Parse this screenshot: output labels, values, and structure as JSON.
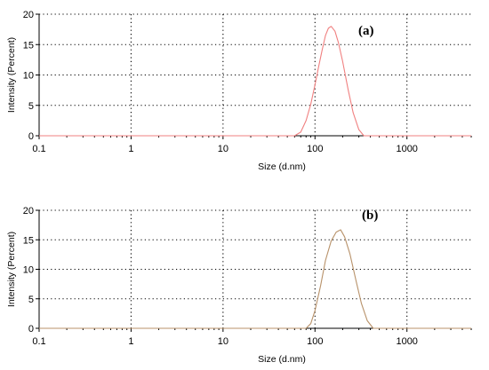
{
  "chart_data": [
    {
      "type": "line",
      "annotation": "(a)",
      "xlabel": "Size (d.nm)",
      "ylabel": "Intensity (Percent)",
      "xscale": "log",
      "xlim": [
        0.1,
        5000
      ],
      "ylim": [
        0,
        20
      ],
      "xticks": [
        0.1,
        1,
        10,
        100,
        1000
      ],
      "xtick_labels": [
        "0.1",
        "1",
        "10",
        "100",
        "1000"
      ],
      "yticks": [
        0,
        5,
        10,
        15,
        20
      ],
      "ytick_labels": [
        "0",
        "5",
        "10",
        "15",
        "20"
      ],
      "grid": true,
      "color": "#f08080",
      "series": [
        {
          "x": [
            0.1,
            60,
            70,
            80,
            90,
            100,
            110,
            120,
            130,
            140,
            150,
            165,
            180,
            200,
            230,
            260,
            300,
            340,
            5000
          ],
          "y": [
            0,
            0,
            0.6,
            2.5,
            5.2,
            8.4,
            11.5,
            14.2,
            16.5,
            17.7,
            18.0,
            17.2,
            15.3,
            12.2,
            7.5,
            3.8,
            1.0,
            0,
            0
          ]
        }
      ]
    },
    {
      "type": "line",
      "annotation": "(b)",
      "xlabel": "Size (d.nm)",
      "ylabel": "Intensity (Percent)",
      "xscale": "log",
      "xlim": [
        0.1,
        5000
      ],
      "ylim": [
        0,
        20
      ],
      "xticks": [
        0.1,
        1,
        10,
        100,
        1000
      ],
      "xtick_labels": [
        "0.1",
        "1",
        "10",
        "100",
        "1000"
      ],
      "yticks": [
        0,
        5,
        10,
        15,
        20
      ],
      "ytick_labels": [
        "0",
        "5",
        "10",
        "15",
        "20"
      ],
      "grid": true,
      "color": "#b8926a",
      "series": [
        {
          "x": [
            0.1,
            80,
            90,
            100,
            115,
            130,
            150,
            170,
            190,
            210,
            240,
            280,
            320,
            370,
            430,
            5000
          ],
          "y": [
            0,
            0,
            0.8,
            3.0,
            7.2,
            11.5,
            14.8,
            16.3,
            16.7,
            15.5,
            12.6,
            8.0,
            4.2,
            1.3,
            0,
            0
          ]
        }
      ]
    }
  ]
}
